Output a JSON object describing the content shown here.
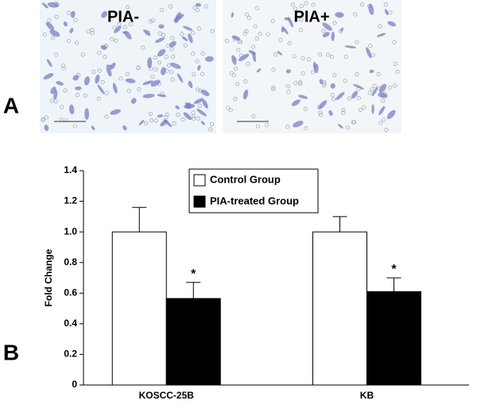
{
  "panels": {
    "a_label": "A",
    "b_label": "B",
    "left_image_label": "PIA-",
    "right_image_label": "PIA+"
  },
  "chart_data": {
    "type": "bar",
    "ylabel": "Fold Change",
    "categories": [
      "KOSCC-25B",
      "KB"
    ],
    "series": [
      {
        "name": "Control Group",
        "color": "#ffffff",
        "values": [
          1.0,
          1.0
        ],
        "errors": [
          0.16,
          0.1
        ]
      },
      {
        "name": "PIA-treated Group",
        "color": "#000000",
        "values": [
          0.565,
          0.61
        ],
        "errors": [
          0.105,
          0.09
        ],
        "annotations": [
          "*",
          "*"
        ]
      }
    ],
    "ylim": [
      0,
      1.4
    ],
    "yticks": [
      0,
      0.2,
      0.4,
      0.6,
      0.8,
      {
        "value": 1,
        "label": "1.0"
      },
      1.2,
      1.4
    ],
    "legend": "top-center",
    "grid": false
  }
}
